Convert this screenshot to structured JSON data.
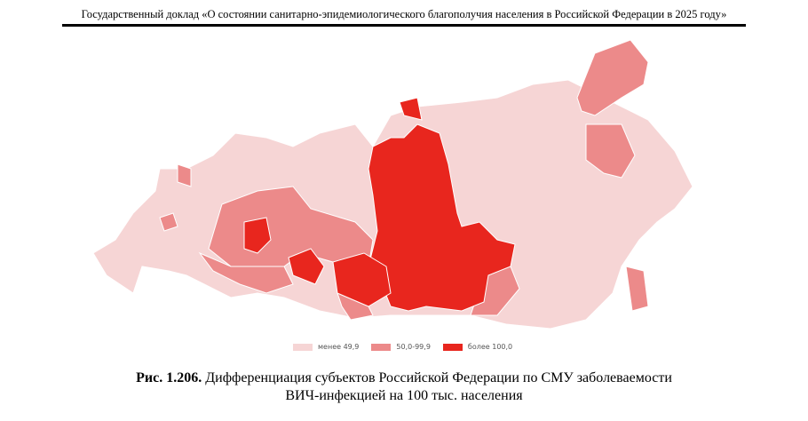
{
  "header": {
    "title": "Государственный доклад «О состоянии санитарно-эпидемиологического благополучия населения в Российской Федерации в 2025 году»"
  },
  "legend": [
    {
      "label": "менее 49,9",
      "color": "#f6d5d5"
    },
    {
      "label": "50,0-99,9",
      "color": "#ec8a8a"
    },
    {
      "label": "более 100,0",
      "color": "#e8261e"
    }
  ],
  "caption": {
    "number": "Рис. 1.206.",
    "line1": "Дифференциация субъектов Российской Федерации по СМУ заболеваемости",
    "line2": "ВИЧ-инфекцией на 100 тыс. населения"
  }
}
